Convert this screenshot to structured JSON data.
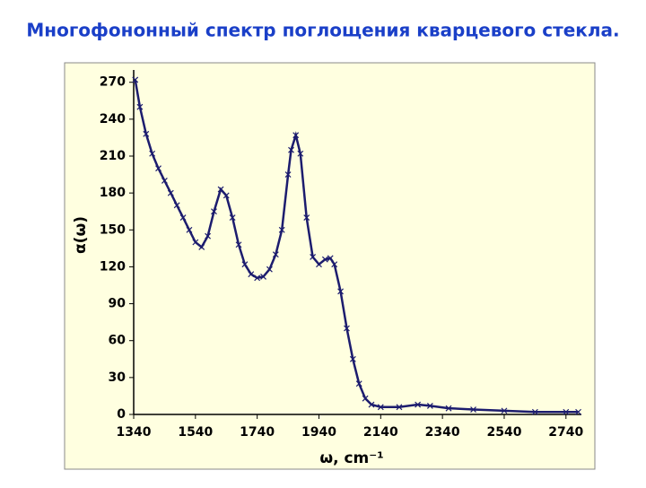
{
  "chart_data": {
    "type": "line",
    "title": "Многофононный спектр поглощения кварцевого стекла.",
    "x_label": "ω, cm⁻¹",
    "y_label": "α(ω)",
    "x": [
      1345,
      1360,
      1380,
      1400,
      1420,
      1440,
      1460,
      1480,
      1500,
      1520,
      1540,
      1560,
      1580,
      1600,
      1622,
      1640,
      1660,
      1680,
      1700,
      1720,
      1740,
      1760,
      1780,
      1800,
      1820,
      1840,
      1850,
      1865,
      1880,
      1900,
      1920,
      1940,
      1960,
      1977,
      1990,
      2010,
      2030,
      2050,
      2070,
      2090,
      2110,
      2140,
      2200,
      2260,
      2300,
      2360,
      2440,
      2540,
      2640,
      2740,
      2780
    ],
    "series": [
      {
        "name": "α(ω)",
        "color": "#1c1c6e",
        "values": [
          272,
          250,
          228,
          212,
          200,
          190,
          180,
          170,
          160,
          150,
          140,
          136,
          145,
          165,
          183,
          178,
          160,
          138,
          122,
          114,
          111,
          112,
          118,
          130,
          150,
          195,
          215,
          227,
          212,
          160,
          128,
          122,
          126,
          127,
          122,
          100,
          70,
          45,
          25,
          13,
          8,
          6,
          6,
          8,
          7,
          5,
          4,
          3,
          2,
          2,
          2
        ]
      }
    ],
    "xlim": [
      1340,
      2790
    ],
    "ylim": [
      0,
      280
    ],
    "xticks": [
      1340,
      1540,
      1740,
      1940,
      2140,
      2340,
      2540,
      2740
    ],
    "yticks": [
      0,
      30,
      60,
      90,
      120,
      150,
      180,
      210,
      240,
      270
    ]
  }
}
